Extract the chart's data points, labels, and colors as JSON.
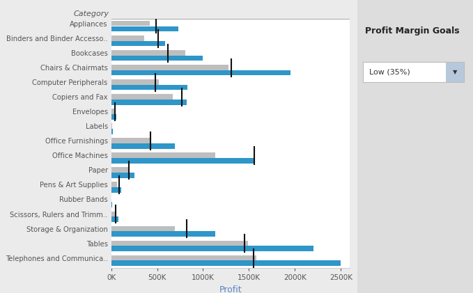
{
  "categories": [
    "Appliances",
    "Binders and Binder Accesso..",
    "Bookcases",
    "Chairs & Chairmats",
    "Computer Peripherals",
    "Copiers and Fax",
    "Envelopes",
    "Labels",
    "Office Furnishings",
    "Office Machines",
    "Paper",
    "Pens & Art Supplies",
    "Rubber Bands",
    "Scissors, Rulers and Trimm..",
    "Storage & Organization",
    "Tables",
    "Telephones and Communica.."
  ],
  "blue_values": [
    730000,
    590000,
    1000000,
    1950000,
    830000,
    820000,
    55000,
    15000,
    690000,
    1550000,
    250000,
    110000,
    8000,
    80000,
    1130000,
    2200000,
    2500000
  ],
  "gray_values": [
    420000,
    360000,
    810000,
    1280000,
    520000,
    670000,
    32000,
    11000,
    420000,
    1130000,
    185000,
    65000,
    4000,
    50000,
    690000,
    1490000,
    1580000
  ],
  "ref_values": [
    490000,
    510000,
    620000,
    1310000,
    480000,
    770000,
    42000,
    -1,
    430000,
    1560000,
    190000,
    85000,
    -1,
    50000,
    820000,
    1450000,
    1550000
  ],
  "xlabel": "Profit",
  "ylabel": "Category",
  "title": "Profit Margin Goals",
  "dropdown_text": "Low (35%)",
  "xmax": 2600000,
  "blue_color": "#2E96C8",
  "gray_color": "#BEBEBE",
  "ref_line_color": "#111111",
  "bg_color": "#EBEBEB",
  "panel_bg": "#FFFFFF",
  "right_panel_bg": "#DDDDDD",
  "axis_label_color": "#5B85C8",
  "tick_label_color": "#555555",
  "top_line_color": "#AAAAAA"
}
